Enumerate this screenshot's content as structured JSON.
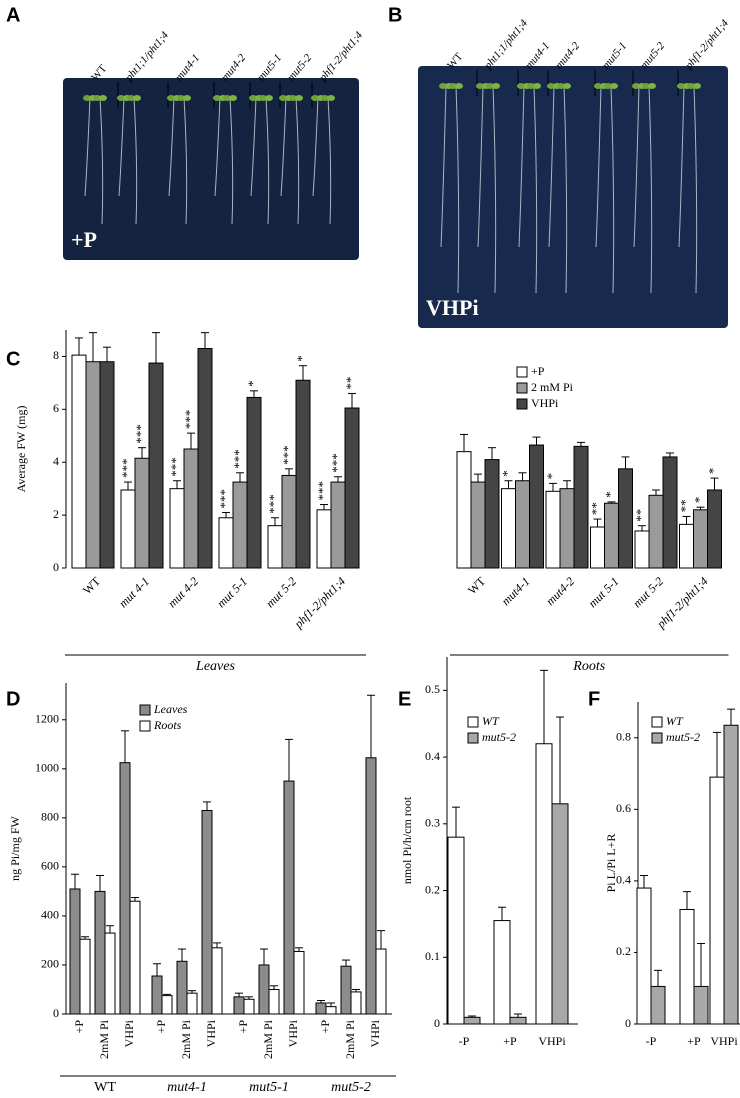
{
  "photos": [
    {
      "panel": "A",
      "condition": "+P",
      "labels": [
        "WT",
        "pht1;1/pht1;4",
        "mut4-1",
        "mut4-2",
        "mut5-1",
        "mut5-2",
        "phf1-2/pht1;4"
      ]
    },
    {
      "panel": "B",
      "condition": "VHPi",
      "labels": [
        "WT",
        "pht1;1/pht1;4",
        "mut4-1",
        "mut4-2",
        "mut5-1",
        "mut5-2",
        "phf1-2/pht1;4"
      ]
    }
  ],
  "chart_data": [
    {
      "type": "bar",
      "panel": "C",
      "ylabel": "Average FW (mg)",
      "ylim": [
        0,
        9
      ],
      "yticks": [
        0,
        2,
        4,
        6,
        8
      ],
      "categories": [
        "WT",
        "mut 4-1",
        "mut 4-2",
        "mut 5-1",
        "mut 5-2",
        "phf1-2/pht1;4",
        "WT",
        "mut4-1",
        "mut4-2",
        "mut 5-1",
        "mut 5-2",
        "phf1-2/pht1;4"
      ],
      "groups": [
        {
          "label": "Leaves",
          "from": 0,
          "to": 5
        },
        {
          "label": "Roots",
          "from": 6,
          "to": 11
        }
      ],
      "series": [
        {
          "name": "+P",
          "color": "#ffffff",
          "values": [
            8.05,
            2.95,
            3.0,
            1.9,
            1.6,
            2.2,
            4.4,
            3.0,
            2.9,
            1.55,
            1.4,
            1.65
          ],
          "errors": [
            0.65,
            0.3,
            0.3,
            0.2,
            0.3,
            0.2,
            0.65,
            0.3,
            0.3,
            0.3,
            0.2,
            0.3
          ],
          "annotations": [
            null,
            "***",
            "***",
            "***",
            "***",
            "***",
            null,
            "*",
            "*",
            "**",
            "**",
            "**"
          ]
        },
        {
          "name": "2 mM Pi",
          "color": "#9a9a9a",
          "values": [
            7.8,
            4.15,
            4.5,
            3.25,
            3.5,
            3.25,
            3.25,
            3.3,
            3.0,
            2.45,
            2.75,
            2.2
          ],
          "errors": [
            1.1,
            0.4,
            0.6,
            0.35,
            0.25,
            0.2,
            0.3,
            0.3,
            0.3,
            0.05,
            0.2,
            0.1
          ],
          "annotations": [
            null,
            "***",
            "***",
            "***",
            "***",
            "***",
            null,
            null,
            null,
            "*",
            null,
            "*"
          ]
        },
        {
          "name": "VHPi",
          "color": "#454545",
          "values": [
            7.8,
            7.75,
            8.3,
            6.45,
            7.1,
            6.05,
            4.1,
            4.65,
            4.6,
            3.75,
            4.2,
            2.95
          ],
          "errors": [
            0.55,
            1.15,
            0.6,
            0.25,
            0.55,
            0.55,
            0.45,
            0.3,
            0.15,
            0.45,
            0.15,
            0.45
          ],
          "annotations": [
            null,
            null,
            null,
            "*",
            "*",
            "**",
            null,
            null,
            null,
            null,
            null,
            "*"
          ]
        }
      ]
    },
    {
      "type": "bar",
      "panel": "D",
      "ylabel": "ng Pi/mg FW",
      "ylim": [
        0,
        1350
      ],
      "yticks": [
        0,
        200,
        400,
        600,
        800,
        1000,
        1200
      ],
      "categories": [
        "+P",
        "2mM Pi",
        "VHPi",
        "+P",
        "2mM Pi",
        "VHPi",
        "+P",
        "2mM Pi",
        "VHPi",
        "+P",
        "2mM Pi",
        "VHPi"
      ],
      "groups": [
        {
          "label": "WT",
          "from": 0,
          "to": 2
        },
        {
          "label": "mut4-1",
          "from": 3,
          "to": 5
        },
        {
          "label": "mut5-1",
          "from": 6,
          "to": 8
        },
        {
          "label": "mut5-2",
          "from": 9,
          "to": 11
        }
      ],
      "series": [
        {
          "name": "Leaves",
          "color": "#8c8c8c",
          "values": [
            510,
            500,
            1025,
            155,
            215,
            830,
            70,
            200,
            950,
            45,
            195,
            1045
          ],
          "errors": [
            60,
            65,
            130,
            50,
            50,
            35,
            15,
            65,
            170,
            10,
            25,
            255
          ]
        },
        {
          "name": "Roots",
          "color": "#ffffff",
          "values": [
            305,
            330,
            460,
            75,
            85,
            270,
            60,
            100,
            255,
            30,
            90,
            265
          ],
          "errors": [
            10,
            30,
            15,
            5,
            10,
            20,
            10,
            15,
            15,
            15,
            10,
            75
          ]
        }
      ]
    },
    {
      "type": "bar",
      "panel": "E",
      "ylabel": "nmol Pi/h/cm root",
      "ylim": [
        0,
        0.55
      ],
      "yticks": [
        0,
        0.1,
        0.2,
        0.3,
        0.4,
        0.5
      ],
      "categories": [
        "-P",
        "+P",
        "VHPi"
      ],
      "series": [
        {
          "name": "WT",
          "color": "#ffffff",
          "values": [
            0.28,
            0.155,
            0.42
          ],
          "errors": [
            0.045,
            0.02,
            0.11
          ]
        },
        {
          "name": "mut5-2",
          "color": "#a8a8a8",
          "values": [
            0.01,
            0.01,
            0.33
          ],
          "errors": [
            0.002,
            0.005,
            0.13
          ]
        }
      ]
    },
    {
      "type": "bar",
      "panel": "F",
      "ylabel": "Pi L/Pi L+R",
      "ylim": [
        0,
        0.9
      ],
      "yticks": [
        0,
        0.2,
        0.4,
        0.6,
        0.8
      ],
      "categories": [
        "-P",
        "+P",
        "VHPi"
      ],
      "series": [
        {
          "name": "WT",
          "color": "#ffffff",
          "values": [
            0.38,
            0.32,
            0.69
          ],
          "errors": [
            0.035,
            0.05,
            0.125
          ]
        },
        {
          "name": "mut5-2",
          "color": "#a8a8a8",
          "values": [
            0.105,
            0.105,
            0.835
          ],
          "errors": [
            0.045,
            0.12,
            0.045
          ]
        }
      ]
    }
  ]
}
